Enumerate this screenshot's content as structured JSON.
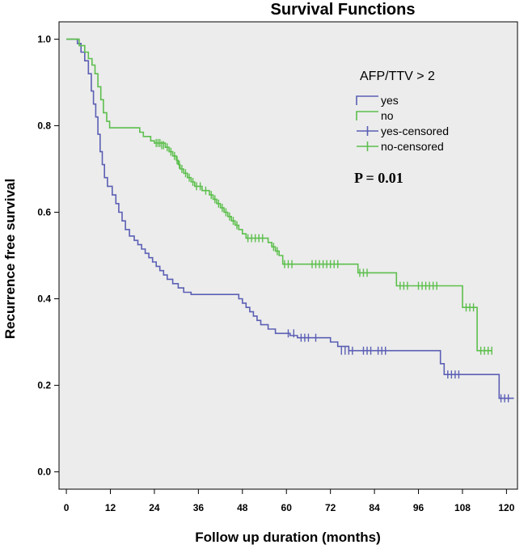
{
  "chart_data": {
    "type": "line",
    "title": "Survival Functions",
    "xlabel": "Follow up duration (months)",
    "ylabel": "Recurrence free survival",
    "xlim": [
      -2,
      123
    ],
    "ylim": [
      -0.04,
      1.04
    ],
    "xticks": [
      0,
      12,
      24,
      36,
      48,
      60,
      72,
      84,
      96,
      108,
      120
    ],
    "yticks": [
      0.0,
      0.2,
      0.4,
      0.6,
      0.8,
      1.0
    ],
    "ytick_labels": [
      "0.0",
      "0.2",
      "0.4",
      "0.6",
      "0.8",
      "1.0"
    ],
    "grid": false,
    "legend": {
      "title": "AFP/TTV > 2",
      "position": "top-right",
      "entries": [
        {
          "label": "yes",
          "series": "yes",
          "kind": "line"
        },
        {
          "label": "no",
          "series": "no",
          "kind": "line"
        },
        {
          "label": "yes-censored",
          "series": "yes",
          "kind": "censor"
        },
        {
          "label": "no-censored",
          "series": "no",
          "kind": "censor"
        }
      ]
    },
    "annotation": "P = 0.01",
    "colors": {
      "yes": "#5b5fb4",
      "no": "#5cbf4c",
      "background": "#ececec"
    },
    "series": [
      {
        "name": "yes",
        "steps": [
          [
            0,
            1.0
          ],
          [
            3,
            0.99
          ],
          [
            4,
            0.97
          ],
          [
            5,
            0.95
          ],
          [
            6,
            0.92
          ],
          [
            6.8,
            0.88
          ],
          [
            7.4,
            0.85
          ],
          [
            8,
            0.82
          ],
          [
            8.6,
            0.78
          ],
          [
            9.2,
            0.74
          ],
          [
            9.8,
            0.71
          ],
          [
            10.4,
            0.68
          ],
          [
            11.2,
            0.66
          ],
          [
            12.5,
            0.64
          ],
          [
            13.5,
            0.62
          ],
          [
            14.3,
            0.6
          ],
          [
            15.2,
            0.58
          ],
          [
            16.1,
            0.56
          ],
          [
            17.2,
            0.545
          ],
          [
            18.5,
            0.535
          ],
          [
            19.5,
            0.525
          ],
          [
            20.5,
            0.515
          ],
          [
            21.5,
            0.505
          ],
          [
            22.5,
            0.495
          ],
          [
            23.5,
            0.485
          ],
          [
            24.5,
            0.475
          ],
          [
            25.5,
            0.465
          ],
          [
            26.5,
            0.455
          ],
          [
            27.5,
            0.445
          ],
          [
            29,
            0.435
          ],
          [
            30.5,
            0.425
          ],
          [
            32,
            0.415
          ],
          [
            34,
            0.41
          ],
          [
            47,
            0.4
          ],
          [
            48,
            0.39
          ],
          [
            49,
            0.38
          ],
          [
            50,
            0.37
          ],
          [
            51,
            0.36
          ],
          [
            52,
            0.35
          ],
          [
            53,
            0.34
          ],
          [
            55,
            0.33
          ],
          [
            57,
            0.32
          ],
          [
            61,
            0.315
          ],
          [
            63,
            0.31
          ],
          [
            72,
            0.3
          ],
          [
            74,
            0.29
          ],
          [
            77,
            0.28
          ],
          [
            102,
            0.25
          ],
          [
            103,
            0.225
          ],
          [
            118,
            0.17
          ],
          [
            122,
            0.17
          ]
        ],
        "censored": [
          [
            60.5,
            0.32
          ],
          [
            62,
            0.32
          ],
          [
            64,
            0.31
          ],
          [
            65,
            0.31
          ],
          [
            66,
            0.31
          ],
          [
            68,
            0.31
          ],
          [
            75,
            0.28
          ],
          [
            76,
            0.28
          ],
          [
            77,
            0.28
          ],
          [
            78,
            0.28
          ],
          [
            81,
            0.28
          ],
          [
            82,
            0.28
          ],
          [
            83,
            0.28
          ],
          [
            85,
            0.28
          ],
          [
            86,
            0.28
          ],
          [
            87,
            0.28
          ],
          [
            104,
            0.225
          ],
          [
            105,
            0.225
          ],
          [
            106,
            0.225
          ],
          [
            107,
            0.225
          ],
          [
            118.5,
            0.17
          ],
          [
            119.5,
            0.17
          ],
          [
            120.5,
            0.17
          ]
        ]
      },
      {
        "name": "no",
        "steps": [
          [
            0,
            1.0
          ],
          [
            3.5,
            0.985
          ],
          [
            5,
            0.97
          ],
          [
            6,
            0.955
          ],
          [
            7,
            0.94
          ],
          [
            7.8,
            0.92
          ],
          [
            8.6,
            0.89
          ],
          [
            9.4,
            0.86
          ],
          [
            10.1,
            0.83
          ],
          [
            11,
            0.81
          ],
          [
            11.8,
            0.795
          ],
          [
            20,
            0.785
          ],
          [
            21,
            0.775
          ],
          [
            23,
            0.765
          ],
          [
            24,
            0.76
          ],
          [
            27,
            0.75
          ],
          [
            28,
            0.74
          ],
          [
            29,
            0.73
          ],
          [
            30,
            0.72
          ],
          [
            30.5,
            0.71
          ],
          [
            31,
            0.7
          ],
          [
            32,
            0.69
          ],
          [
            33,
            0.68
          ],
          [
            34,
            0.67
          ],
          [
            35,
            0.66
          ],
          [
            37,
            0.65
          ],
          [
            39,
            0.64
          ],
          [
            40,
            0.63
          ],
          [
            41,
            0.62
          ],
          [
            42,
            0.61
          ],
          [
            43,
            0.6
          ],
          [
            44,
            0.59
          ],
          [
            45,
            0.58
          ],
          [
            46,
            0.57
          ],
          [
            47,
            0.56
          ],
          [
            48,
            0.55
          ],
          [
            49,
            0.54
          ],
          [
            55,
            0.53
          ],
          [
            56,
            0.52
          ],
          [
            57,
            0.51
          ],
          [
            58,
            0.5
          ],
          [
            59,
            0.48
          ],
          [
            79.5,
            0.46
          ],
          [
            90,
            0.43
          ],
          [
            108,
            0.38
          ],
          [
            112,
            0.28
          ],
          [
            116,
            0.28
          ]
        ],
        "censored": [
          [
            24.5,
            0.76
          ],
          [
            25,
            0.76
          ],
          [
            25.5,
            0.76
          ],
          [
            26,
            0.755
          ],
          [
            26.5,
            0.755
          ],
          [
            27.5,
            0.75
          ],
          [
            28.5,
            0.74
          ],
          [
            29.5,
            0.73
          ],
          [
            30.2,
            0.72
          ],
          [
            30.8,
            0.71
          ],
          [
            31.5,
            0.7
          ],
          [
            32.5,
            0.69
          ],
          [
            33.5,
            0.68
          ],
          [
            34.5,
            0.67
          ],
          [
            35.5,
            0.66
          ],
          [
            36.5,
            0.66
          ],
          [
            38,
            0.65
          ],
          [
            39.5,
            0.64
          ],
          [
            40.5,
            0.63
          ],
          [
            41.5,
            0.62
          ],
          [
            42.5,
            0.61
          ],
          [
            43.5,
            0.6
          ],
          [
            44.5,
            0.59
          ],
          [
            45.5,
            0.58
          ],
          [
            46.5,
            0.57
          ],
          [
            49.5,
            0.54
          ],
          [
            50.5,
            0.54
          ],
          [
            51.5,
            0.54
          ],
          [
            52.5,
            0.54
          ],
          [
            53.5,
            0.54
          ],
          [
            56.5,
            0.52
          ],
          [
            57.5,
            0.51
          ],
          [
            59.5,
            0.48
          ],
          [
            60.5,
            0.48
          ],
          [
            61.5,
            0.48
          ],
          [
            67,
            0.48
          ],
          [
            68,
            0.48
          ],
          [
            69,
            0.48
          ],
          [
            70,
            0.48
          ],
          [
            71,
            0.48
          ],
          [
            72,
            0.48
          ],
          [
            73,
            0.48
          ],
          [
            74,
            0.48
          ],
          [
            80,
            0.46
          ],
          [
            81,
            0.46
          ],
          [
            82,
            0.46
          ],
          [
            91,
            0.43
          ],
          [
            92,
            0.43
          ],
          [
            93,
            0.43
          ],
          [
            96,
            0.43
          ],
          [
            97,
            0.43
          ],
          [
            98,
            0.43
          ],
          [
            99,
            0.43
          ],
          [
            100,
            0.43
          ],
          [
            101,
            0.43
          ],
          [
            109,
            0.38
          ],
          [
            110,
            0.38
          ],
          [
            111,
            0.38
          ],
          [
            113,
            0.28
          ],
          [
            114,
            0.28
          ],
          [
            115,
            0.28
          ],
          [
            116,
            0.28
          ]
        ]
      }
    ]
  }
}
